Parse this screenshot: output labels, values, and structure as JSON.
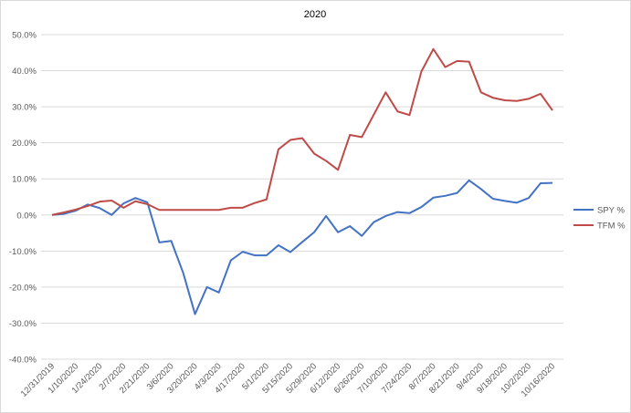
{
  "chart_data": {
    "type": "line",
    "title": "2020",
    "categories": [
      "12/31/2019",
      null,
      "1/10/2020",
      null,
      "1/24/2020",
      null,
      "2/7/2020",
      null,
      "2/21/2020",
      null,
      "3/6/2020",
      null,
      "3/20/2020",
      null,
      "4/3/2020",
      null,
      "4/17/2020",
      null,
      "5/1/2020",
      null,
      "5/15/2020",
      null,
      "5/29/2020",
      null,
      "6/12/2020",
      null,
      "6/26/2020",
      null,
      "7/10/2020",
      null,
      "7/24/2020",
      null,
      "8/7/2020",
      null,
      "8/21/2020",
      null,
      "9/4/2020",
      null,
      "9/18/2020",
      null,
      "10/2/2020",
      null,
      "10/16/2020"
    ],
    "series": [
      {
        "name": "SPY %",
        "color": "#4472c4",
        "values": [
          0,
          0.3,
          1.2,
          2.9,
          1.9,
          0,
          3.2,
          4.7,
          3.5,
          -7.6,
          -7.2,
          -16,
          -27.5,
          -20,
          -21.5,
          -12.6,
          -10.2,
          -11.2,
          -11.2,
          -8.4,
          -10.3,
          -7.5,
          -4.8,
          -0.3,
          -4.8,
          -3.1,
          -5.8,
          -2,
          -0.3,
          0.8,
          0.5,
          2.2,
          4.8,
          5.3,
          6.1,
          9.6,
          7.2,
          4.5,
          3.9,
          3.4,
          4.7,
          8.8,
          8.9
        ]
      },
      {
        "name": "TFM %",
        "color": "#be4b48",
        "values": [
          0,
          0.7,
          1.5,
          2.5,
          3.7,
          4,
          2,
          3.8,
          3,
          1.4,
          1.4,
          1.4,
          1.4,
          1.4,
          1.4,
          2,
          2,
          3.3,
          4.3,
          18.2,
          20.8,
          21.3,
          17,
          15,
          12.5,
          22.2,
          21.6,
          27.8,
          34,
          28.7,
          27.7,
          39.8,
          46,
          41,
          42.7,
          42.5,
          34,
          32.5,
          31.8,
          31.6,
          32.2,
          33.6,
          29
        ]
      }
    ],
    "ylim": [
      -40,
      50
    ],
    "yticks": [
      {
        "value": -40,
        "label": "-40.0%"
      },
      {
        "value": -30,
        "label": "-30.0%"
      },
      {
        "value": -20,
        "label": "-20.0%"
      },
      {
        "value": -10,
        "label": "-10.0%"
      },
      {
        "value": 0,
        "label": "0.0%"
      },
      {
        "value": 10,
        "label": "10.0%"
      },
      {
        "value": 20,
        "label": "20.0%"
      },
      {
        "value": 30,
        "label": "30.0%"
      },
      {
        "value": 40,
        "label": "40.0%"
      },
      {
        "value": 50,
        "label": "50.0%"
      }
    ],
    "grid": true,
    "legend": "right"
  }
}
